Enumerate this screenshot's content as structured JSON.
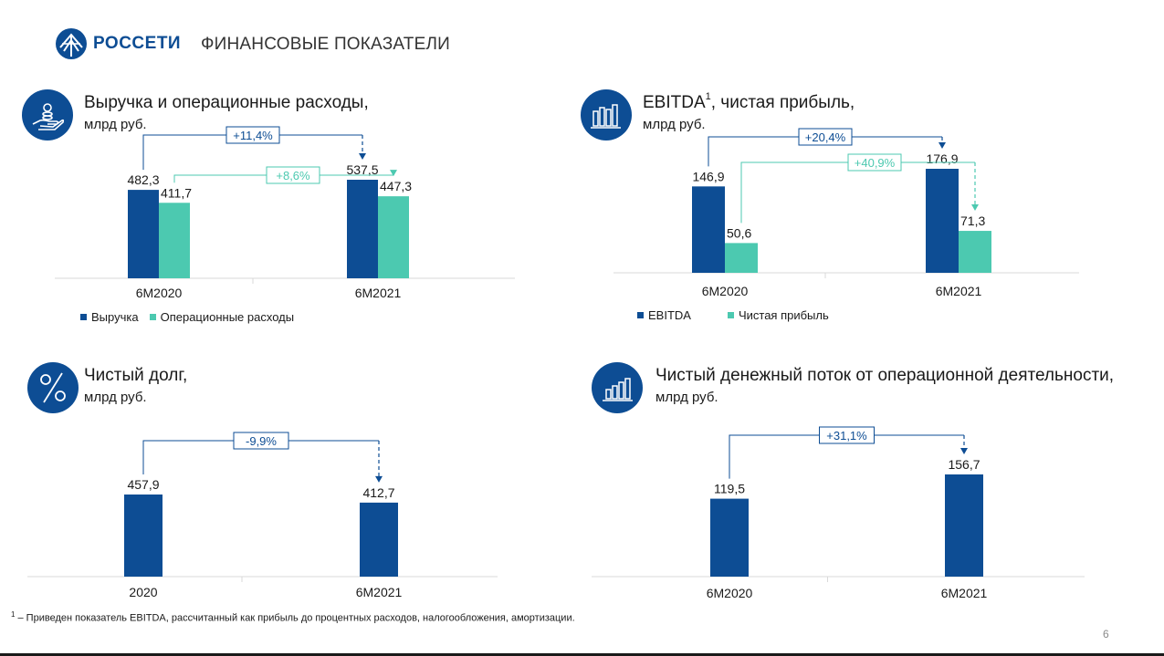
{
  "header": {
    "logo_text": "РОССЕТИ",
    "title": "ФИНАНСОВЫЕ ПОКАЗАТЕЛИ"
  },
  "colors": {
    "primary": "#0d4d94",
    "secondary": "#4cc9b0",
    "axis": "#d9d9d9",
    "growth_box_primary": "#0d4d94",
    "growth_box_secondary": "#4cc9b0"
  },
  "panels": {
    "revenue": {
      "title": "Выручка и операционные расходы,",
      "unit": "млрд руб.",
      "icon": "hand-coins-icon"
    },
    "ebitda": {
      "title": "EBITDA",
      "title_sup": "1",
      "title_rest": ", чистая прибыль,",
      "unit": "млрд руб.",
      "icon": "bar-chart-icon"
    },
    "debt": {
      "title": "Чистый долг,",
      "unit": "млрд руб.",
      "icon": "percent-icon"
    },
    "cashflow": {
      "title": "Чистый денежный поток от операционной деятельности,",
      "unit": "млрд руб.",
      "icon": "growth-chart-icon"
    }
  },
  "chart_data": [
    {
      "id": "revenue",
      "type": "bar",
      "categories": [
        "6М2020",
        "6М2021"
      ],
      "series": [
        {
          "name": "Выручка",
          "values": [
            482.3,
            537.5
          ],
          "labels": [
            "482,3",
            "537,5"
          ]
        },
        {
          "name": "Операционные расходы",
          "values": [
            411.7,
            447.3
          ],
          "labels": [
            "411,7",
            "447,3"
          ]
        }
      ],
      "growth": [
        {
          "series": 0,
          "label": "+11,4%"
        },
        {
          "series": 1,
          "label": "+8,6%"
        }
      ],
      "legend": "bottom-left"
    },
    {
      "id": "ebitda",
      "type": "bar",
      "categories": [
        "6М2020",
        "6М2021"
      ],
      "series": [
        {
          "name": "EBITDA",
          "values": [
            146.9,
            176.9
          ],
          "labels": [
            "146,9",
            "176,9"
          ]
        },
        {
          "name": "Чистая прибыль",
          "values": [
            50.6,
            71.3
          ],
          "labels": [
            "50,6",
            "71,3"
          ]
        }
      ],
      "growth": [
        {
          "series": 0,
          "label": "+20,4%"
        },
        {
          "series": 1,
          "label": "+40,9%"
        }
      ],
      "legend": "bottom-left"
    },
    {
      "id": "debt",
      "type": "bar",
      "categories": [
        "2020",
        "6М2021"
      ],
      "series": [
        {
          "name": "",
          "values": [
            457.9,
            412.7
          ],
          "labels": [
            "457,9",
            "412,7"
          ]
        }
      ],
      "growth": [
        {
          "series": 0,
          "label": "-9,9%"
        }
      ]
    },
    {
      "id": "cashflow",
      "type": "bar",
      "categories": [
        "6М2020",
        "6М2021"
      ],
      "series": [
        {
          "name": "",
          "values": [
            119.5,
            156.7
          ],
          "labels": [
            "119,5",
            "156,7"
          ]
        }
      ],
      "growth": [
        {
          "series": 0,
          "label": "+31,1%"
        }
      ]
    }
  ],
  "footnote": {
    "sup": "1",
    "text": " – Приведен показатель EBITDA, рассчитанный как прибыль до процентных расходов, налогообложения, амортизации."
  },
  "page_number": "6"
}
